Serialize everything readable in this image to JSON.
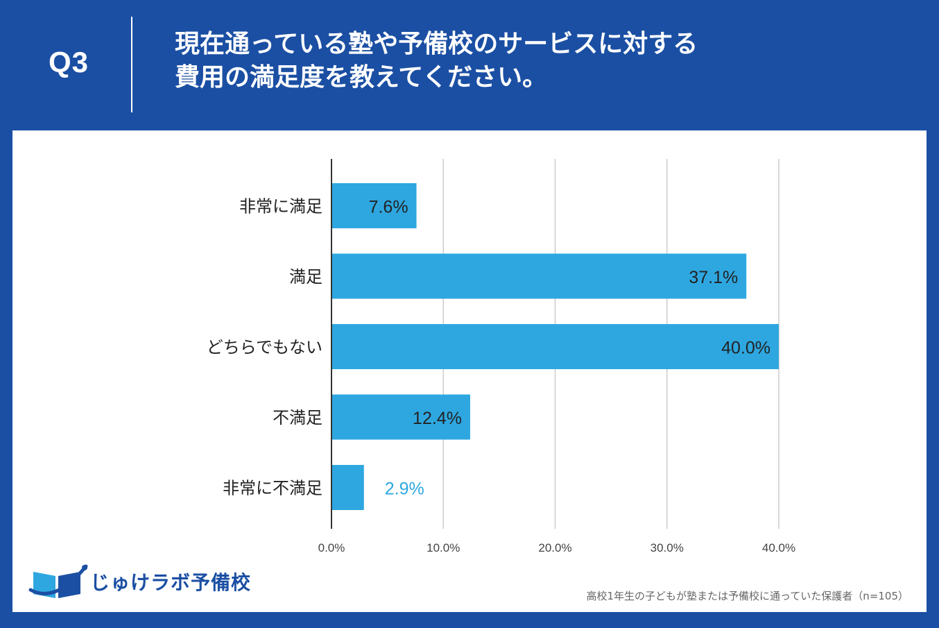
{
  "header": {
    "question_label": "Q3",
    "title_line1": "現在通っている塾や予備校のサービスに対する",
    "title_line2": "費用の満足度を教えてください。"
  },
  "chart_data": {
    "type": "bar",
    "orientation": "horizontal",
    "categories": [
      "非常に満足",
      "満足",
      "どちらでもない",
      "不満足",
      "非常に不満足"
    ],
    "values": [
      7.6,
      37.1,
      40.0,
      12.4,
      2.9
    ],
    "value_labels": [
      "7.6%",
      "37.1%",
      "40.0%",
      "12.4%",
      "2.9%"
    ],
    "xlim": [
      0,
      40
    ],
    "ticks": [
      0,
      10,
      20,
      30,
      40
    ],
    "tick_labels": [
      "0.0%",
      "10.0%",
      "20.0%",
      "30.0%",
      "40.0%"
    ],
    "grid": true,
    "bar_color": "#2ea7e0",
    "label_color_inside": "#222222",
    "label_color_outside": "#2ea7e0"
  },
  "footer": {
    "logo_text": "じゅけラボ予備校",
    "note": "高校1年生の子どもが塾または予備校に通っていた保護者（n=105）"
  },
  "colors": {
    "brand_blue": "#1b4fa3"
  }
}
